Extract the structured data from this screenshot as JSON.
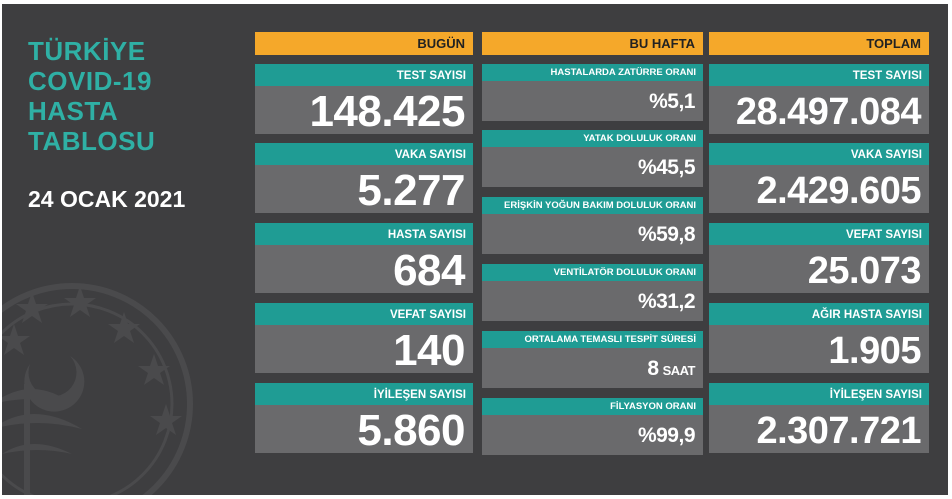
{
  "title_lines": [
    "TÜRKİYE",
    "COVID-19",
    "HASTA",
    "TABLOSU"
  ],
  "date": "24 OCAK 2021",
  "colors": {
    "background": "#3e3e40",
    "header": "#f5a82a",
    "label": "#1f9c94",
    "value_bg": "#6a6a6c",
    "title": "#2fb0a5"
  },
  "emblem_icon": "ministry-of-health-emblem-icon",
  "today": {
    "header": "BUGÜN",
    "items": [
      {
        "label": "TEST SAYISI",
        "value": "148.425"
      },
      {
        "label": "VAKA SAYISI",
        "value": "5.277"
      },
      {
        "label": "HASTA SAYISI",
        "value": "684"
      },
      {
        "label": "VEFAT SAYISI",
        "value": "140"
      },
      {
        "label": "İYİLEŞEN SAYISI",
        "value": "5.860"
      }
    ]
  },
  "week": {
    "header": "BU HAFTA",
    "items": [
      {
        "label": "HASTALARDA ZATÜRRE ORANI",
        "value": "%5,1",
        "unit": ""
      },
      {
        "label": "YATAK DOLULUK ORANI",
        "value": "%45,5",
        "unit": ""
      },
      {
        "label": "ERİŞKİN YOĞUN BAKIM DOLULUK ORANI",
        "value": "%59,8",
        "unit": ""
      },
      {
        "label": "VENTİLATÖR DOLULUK ORANI",
        "value": "%31,2",
        "unit": ""
      },
      {
        "label": "ORTALAMA TEMASLI TESPİT SÜRESİ",
        "value": "8",
        "unit": "SAAT"
      },
      {
        "label": "FİLYASYON ORANI",
        "value": "%99,9",
        "unit": ""
      }
    ]
  },
  "total": {
    "header": "TOPLAM",
    "items": [
      {
        "label": "TEST SAYISI",
        "value": "28.497.084"
      },
      {
        "label": "VAKA SAYISI",
        "value": "2.429.605"
      },
      {
        "label": "VEFAT SAYISI",
        "value": "25.073"
      },
      {
        "label": "AĞIR HASTA SAYISI",
        "value": "1.905"
      },
      {
        "label": "İYİLEŞEN SAYISI",
        "value": "2.307.721"
      }
    ]
  }
}
